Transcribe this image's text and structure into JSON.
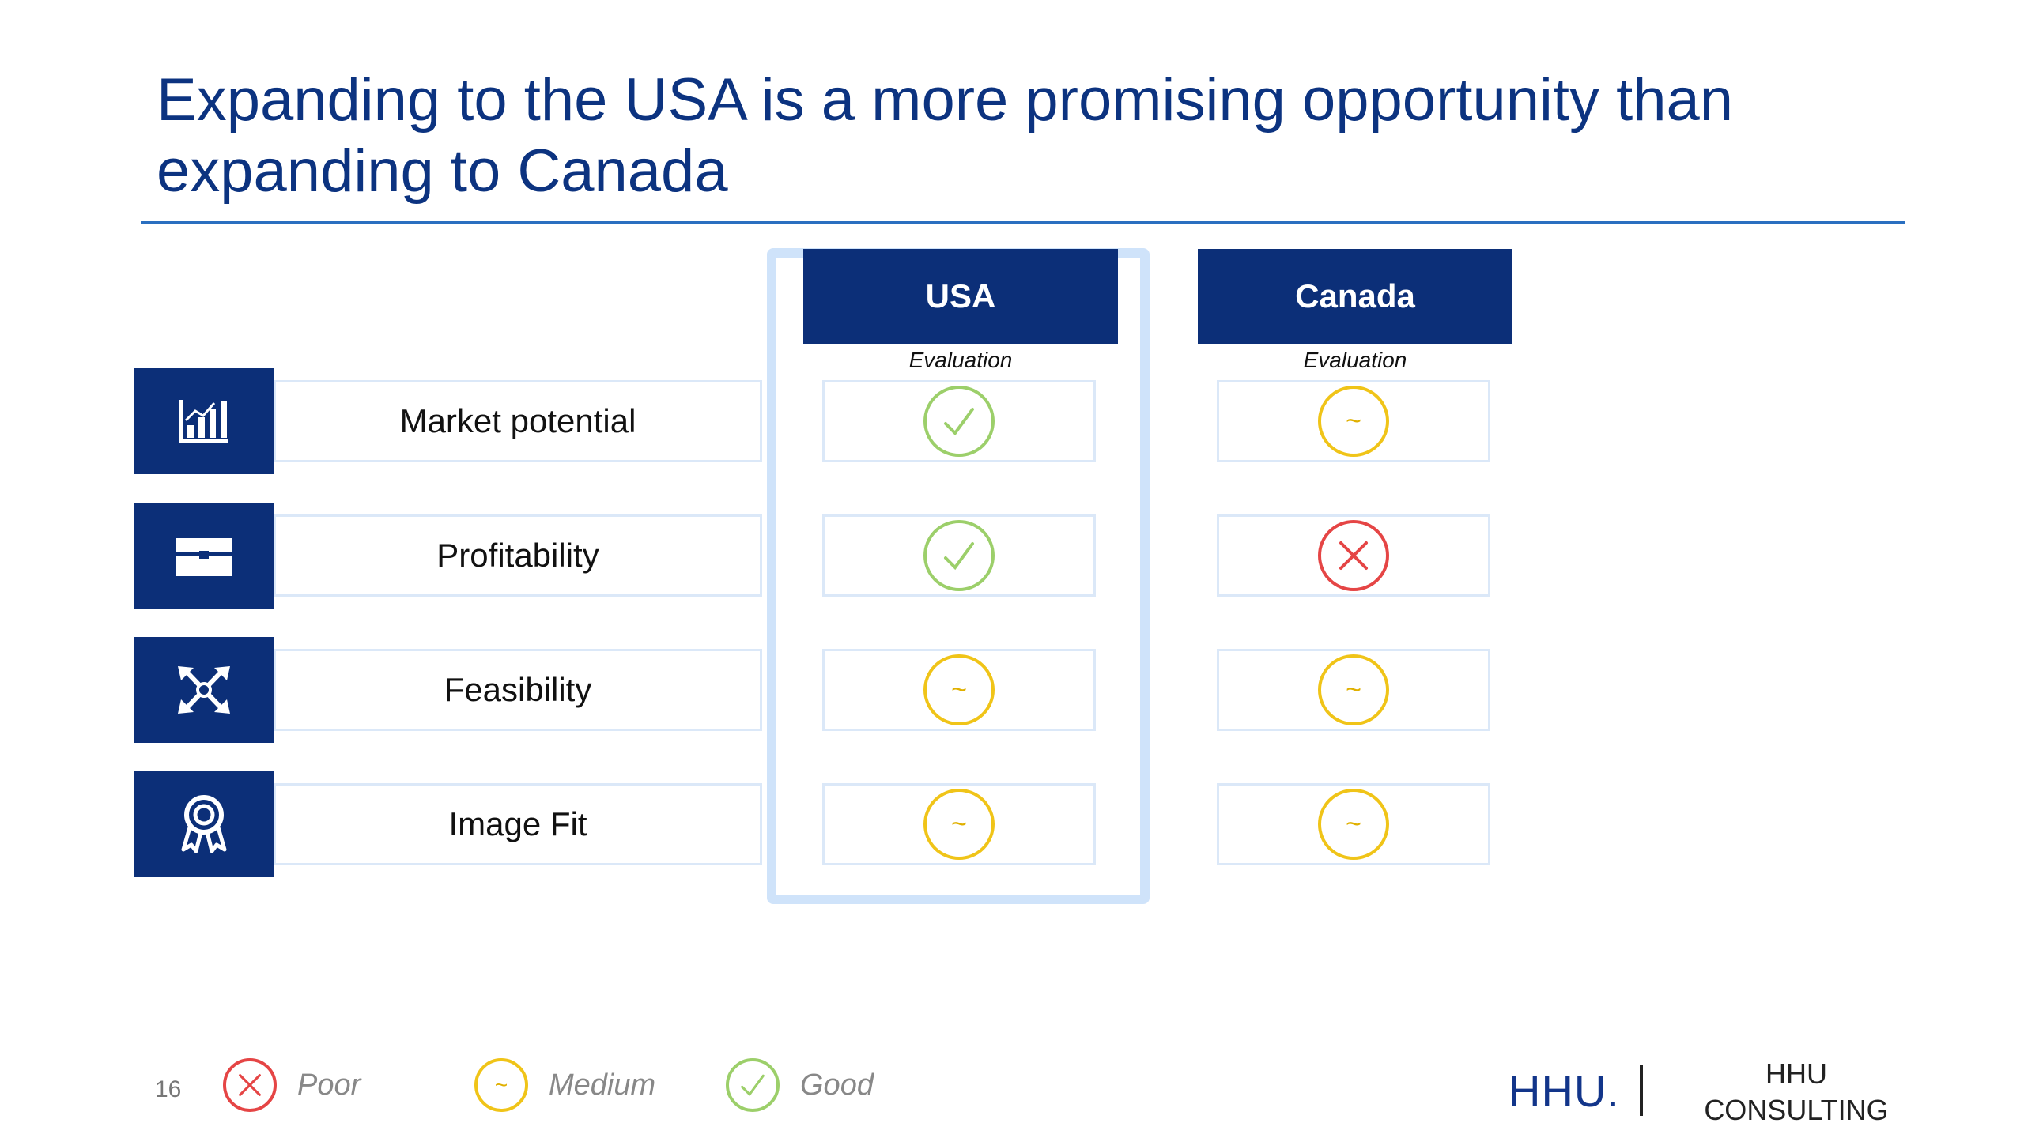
{
  "title": "Expanding to the USA is a more promising opportunity than expanding to Canada",
  "columns": [
    {
      "name": "USA",
      "subtitle": "Evaluation"
    },
    {
      "name": "Canada",
      "subtitle": "Evaluation"
    }
  ],
  "criteria": [
    {
      "label": "Market potential",
      "icon": "bar-chart-icon",
      "usa": "good",
      "canada": "medium"
    },
    {
      "label": "Profitability",
      "icon": "briefcase-icon",
      "usa": "good",
      "canada": "poor"
    },
    {
      "label": "Feasibility",
      "icon": "cross-arrows-icon",
      "usa": "medium",
      "canada": "medium"
    },
    {
      "label": "Image Fit",
      "icon": "award-ribbon-icon",
      "usa": "medium",
      "canada": "medium"
    }
  ],
  "legend": [
    {
      "key": "poor",
      "label": "Poor"
    },
    {
      "key": "medium",
      "label": "Medium"
    },
    {
      "key": "good",
      "label": "Good"
    }
  ],
  "footer": {
    "page_number": "16",
    "brand": "HHU.",
    "brand_sub_line1": "HHU",
    "brand_sub_line2": "CONSULTING"
  },
  "colors": {
    "title": "#0c3380",
    "header_fill": "#0c2f78",
    "good": "#9ccf6a",
    "medium": "#f0c418",
    "poor": "#e54545"
  }
}
